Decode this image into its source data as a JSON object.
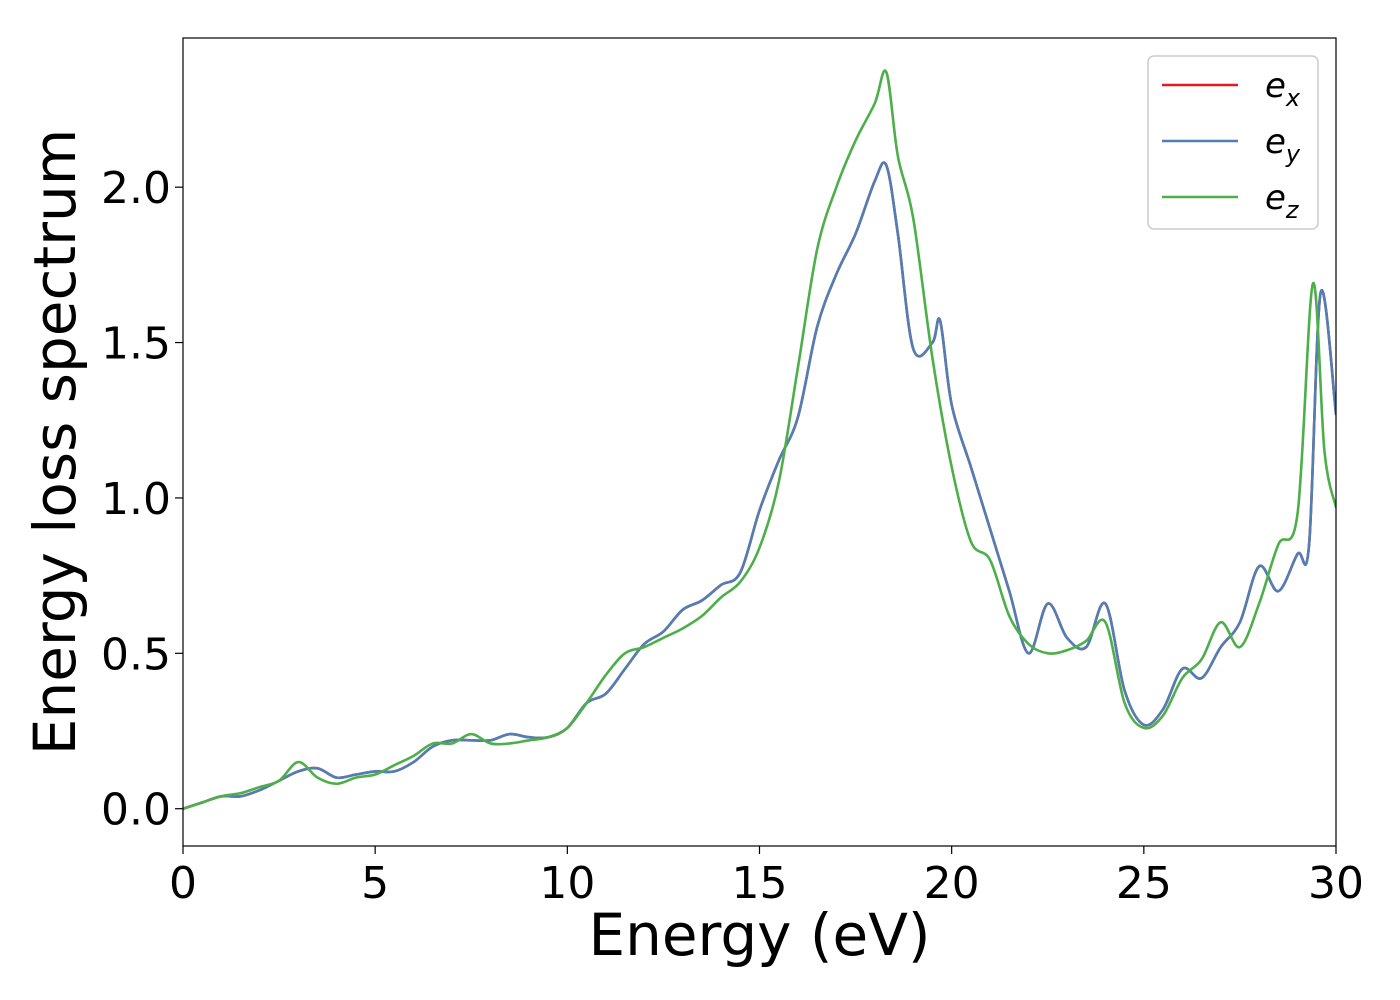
{
  "chart_data": {
    "type": "line",
    "xlabel": "Energy (eV)",
    "ylabel": "Energy loss spectrum",
    "xlim": [
      0,
      30
    ],
    "ylim": [
      -0.12,
      2.48
    ],
    "x_ticks": [
      "0",
      "5",
      "10",
      "15",
      "20",
      "25",
      "30"
    ],
    "y_ticks": [
      "0.0",
      "0.5",
      "1.0",
      "1.5",
      "2.0"
    ],
    "grid": false,
    "legend_position": "top-right",
    "series": [
      {
        "name": "e_x",
        "legend_base": "e",
        "legend_sub": "x",
        "color": "#e41a1c",
        "x": [
          0,
          0.5,
          1,
          1.5,
          2,
          2.5,
          3,
          3.5,
          4,
          4.5,
          5,
          5.5,
          6,
          6.5,
          7,
          7.5,
          8,
          8.5,
          9,
          9.5,
          10,
          10.5,
          11,
          11.5,
          12,
          12.5,
          13,
          13.5,
          14,
          14.5,
          15,
          15.5,
          16,
          16.5,
          17,
          17.5,
          18,
          18.3,
          18.6,
          19,
          19.5,
          19.7,
          20,
          20.5,
          21,
          21.5,
          22,
          22.5,
          23,
          23.5,
          24,
          24.5,
          25,
          25.5,
          26,
          26.5,
          27,
          27.5,
          28,
          28.5,
          29,
          29.3,
          29.6,
          30
        ],
        "y": [
          0,
          0.02,
          0.04,
          0.04,
          0.06,
          0.09,
          0.12,
          0.13,
          0.1,
          0.11,
          0.12,
          0.12,
          0.15,
          0.2,
          0.22,
          0.22,
          0.22,
          0.24,
          0.23,
          0.23,
          0.26,
          0.34,
          0.37,
          0.45,
          0.53,
          0.57,
          0.64,
          0.67,
          0.72,
          0.76,
          0.96,
          1.12,
          1.26,
          1.55,
          1.72,
          1.85,
          2.02,
          2.07,
          1.85,
          1.48,
          1.5,
          1.57,
          1.3,
          1.1,
          0.9,
          0.7,
          0.5,
          0.66,
          0.55,
          0.52,
          0.66,
          0.38,
          0.27,
          0.32,
          0.45,
          0.42,
          0.52,
          0.6,
          0.78,
          0.7,
          0.82,
          0.85,
          1.66,
          1.27
        ]
      },
      {
        "name": "e_y",
        "legend_base": "e",
        "legend_sub": "y",
        "color": "#4f7fb5",
        "x": [
          0,
          0.5,
          1,
          1.5,
          2,
          2.5,
          3,
          3.5,
          4,
          4.5,
          5,
          5.5,
          6,
          6.5,
          7,
          7.5,
          8,
          8.5,
          9,
          9.5,
          10,
          10.5,
          11,
          11.5,
          12,
          12.5,
          13,
          13.5,
          14,
          14.5,
          15,
          15.5,
          16,
          16.5,
          17,
          17.5,
          18,
          18.3,
          18.6,
          19,
          19.5,
          19.7,
          20,
          20.5,
          21,
          21.5,
          22,
          22.5,
          23,
          23.5,
          24,
          24.5,
          25,
          25.5,
          26,
          26.5,
          27,
          27.5,
          28,
          28.5,
          29,
          29.3,
          29.6,
          30
        ],
        "y": [
          0,
          0.02,
          0.04,
          0.04,
          0.06,
          0.09,
          0.12,
          0.13,
          0.1,
          0.11,
          0.12,
          0.12,
          0.15,
          0.2,
          0.22,
          0.22,
          0.22,
          0.24,
          0.23,
          0.23,
          0.26,
          0.34,
          0.37,
          0.45,
          0.53,
          0.57,
          0.64,
          0.67,
          0.72,
          0.76,
          0.96,
          1.12,
          1.26,
          1.55,
          1.72,
          1.85,
          2.02,
          2.07,
          1.85,
          1.48,
          1.5,
          1.57,
          1.3,
          1.1,
          0.9,
          0.7,
          0.5,
          0.66,
          0.55,
          0.52,
          0.66,
          0.38,
          0.27,
          0.32,
          0.45,
          0.42,
          0.52,
          0.6,
          0.78,
          0.7,
          0.82,
          0.85,
          1.66,
          1.27
        ]
      },
      {
        "name": "e_z",
        "legend_base": "e",
        "legend_sub": "z",
        "color": "#4daf4a",
        "x": [
          0,
          0.5,
          1,
          1.5,
          2,
          2.5,
          3,
          3.5,
          4,
          4.5,
          5,
          5.5,
          6,
          6.5,
          7,
          7.5,
          8,
          8.5,
          9,
          9.5,
          10,
          10.5,
          11,
          11.5,
          12,
          12.5,
          13,
          13.5,
          14,
          14.5,
          15,
          15.5,
          16,
          16.5,
          17,
          17.5,
          18,
          18.3,
          18.6,
          19,
          19.5,
          20,
          20.5,
          21,
          21.5,
          22,
          22.5,
          23,
          23.5,
          24,
          24.5,
          25,
          25.5,
          26,
          26.5,
          27,
          27.5,
          28,
          28.5,
          29,
          29.4,
          29.7,
          30
        ],
        "y": [
          0,
          0.02,
          0.04,
          0.05,
          0.07,
          0.09,
          0.15,
          0.1,
          0.08,
          0.1,
          0.11,
          0.14,
          0.17,
          0.21,
          0.21,
          0.24,
          0.21,
          0.21,
          0.22,
          0.23,
          0.26,
          0.34,
          0.43,
          0.5,
          0.52,
          0.55,
          0.58,
          0.62,
          0.68,
          0.73,
          0.84,
          1.05,
          1.42,
          1.8,
          2.0,
          2.15,
          2.27,
          2.37,
          2.1,
          1.9,
          1.45,
          1.1,
          0.86,
          0.8,
          0.62,
          0.53,
          0.5,
          0.51,
          0.54,
          0.6,
          0.34,
          0.26,
          0.3,
          0.42,
          0.48,
          0.6,
          0.52,
          0.66,
          0.85,
          0.95,
          1.69,
          1.15,
          0.97
        ]
      }
    ]
  }
}
